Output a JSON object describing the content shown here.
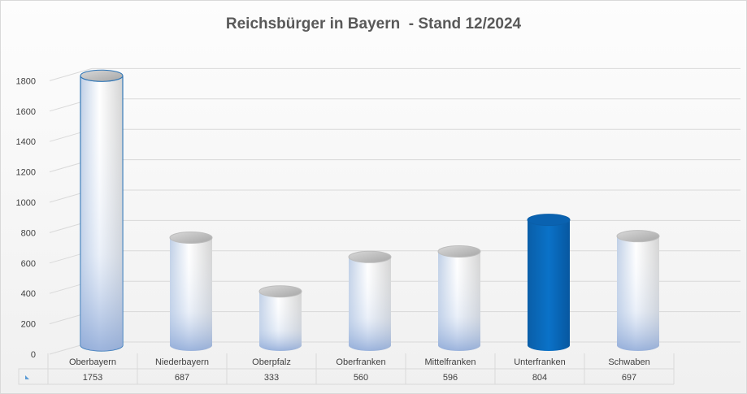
{
  "chart_data": {
    "type": "bar",
    "title": "Reichsbürger in Bayern  - Stand 12/2024",
    "categories": [
      "Oberbayern",
      "Niederbayern",
      "Oberpfalz",
      "Oberfranken",
      "Mittelfranken",
      "Unterfranken",
      "Schwaben"
    ],
    "series": [
      {
        "values": [
          1753,
          687,
          333,
          560,
          596,
          804,
          697
        ]
      }
    ],
    "highlight_category": "Unterfranken",
    "ylim": [
      0,
      1800
    ],
    "yticks": [
      0,
      200,
      400,
      600,
      800,
      1000,
      1200,
      1400,
      1600,
      1800
    ],
    "grid": true,
    "style": "3d-cylinder",
    "data_table": true,
    "colors": {
      "bar_light": "#ffffff",
      "bar_shade": "#9fb6dc",
      "bar_highlight": "#0a6dc2",
      "outline_first": "#2e75b6"
    }
  }
}
